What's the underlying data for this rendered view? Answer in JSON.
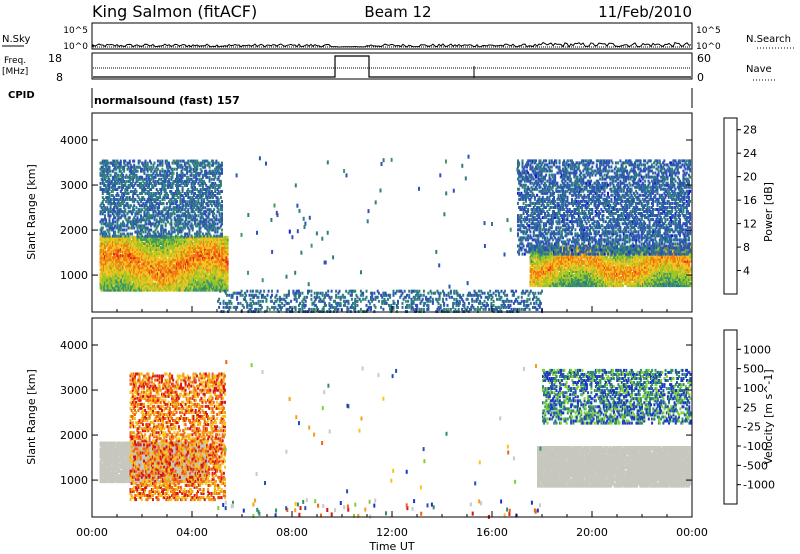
{
  "header": {
    "station": "King Salmon (fitACF)",
    "beam": "Beam 12",
    "date": "11/Feb/2010"
  },
  "summary_panels": {
    "nsky_label": "N.Sky",
    "nsearch_label": "N.Search",
    "count_ticks": [
      "10^5",
      "10^0"
    ],
    "freq_label_line1": "Freq.",
    "freq_label_line2": "[MHz]",
    "freq_ticks": [
      "18",
      "8"
    ],
    "nave_label": "Nave",
    "nave_ticks": [
      "60",
      "0"
    ],
    "cpid_label": "CPID",
    "cpid_text": "normalsound (fast) 157"
  },
  "colors": {
    "power_scale": [
      "#1414e6",
      "#2d53b4",
      "#2f7d83",
      "#3f9b5e",
      "#9cc624",
      "#f3c21f",
      "#f27a12",
      "#e72516",
      "#d80d10"
    ],
    "velocity_scale": [
      "#d81414",
      "#f06414",
      "#f3a014",
      "#f7c41c",
      "#c8c8c8",
      "#c8c8c8",
      "#7fcf3a",
      "#2f8f6a",
      "#2552b0",
      "#1a32c8"
    ],
    "ground_scatter": "#c7c7bd"
  },
  "chart_data": [
    {
      "type": "heatmap",
      "name": "power",
      "title": "",
      "xlabel": "Time UT",
      "ylabel": "Slant Range [km]",
      "x_range_hours": [
        0,
        24
      ],
      "x_ticks": [
        "00:00",
        "04:00",
        "08:00",
        "12:00",
        "16:00",
        "20:00",
        "00:00"
      ],
      "ylim": [
        180,
        4600
      ],
      "y_ticks": [
        1000,
        2000,
        3000,
        4000
      ],
      "colorbar_label": "Power [dB]",
      "colorbar_ticks": [
        4,
        8,
        12,
        16,
        20,
        24,
        28
      ],
      "colorbar_range": [
        0,
        30
      ],
      "regions": [
        {
          "start_hour": 0.3,
          "end_hour": 5.4,
          "range_band": [
            700,
            1900
          ],
          "level": 17
        },
        {
          "start_hour": 0.3,
          "end_hour": 5.2,
          "range_band": [
            1900,
            3600
          ],
          "level": 6
        },
        {
          "start_hour": 17.5,
          "end_hour": 24.0,
          "range_band": [
            800,
            1700
          ],
          "level": 16
        },
        {
          "start_hour": 17.0,
          "end_hour": 24.0,
          "range_band": [
            1500,
            3600
          ],
          "level": 5
        },
        {
          "start_hour": 5.0,
          "end_hour": 18.0,
          "range_band": [
            180,
            700
          ],
          "level": 6
        }
      ]
    },
    {
      "type": "heatmap",
      "name": "velocity",
      "title": "",
      "xlabel": "Time UT",
      "ylabel": "Slant Range [km]",
      "x_range_hours": [
        0,
        24
      ],
      "x_ticks": [
        "00:00",
        "04:00",
        "08:00",
        "12:00",
        "16:00",
        "20:00",
        "00:00"
      ],
      "ylim": [
        180,
        4600
      ],
      "y_ticks": [
        1000,
        2000,
        3000,
        4000
      ],
      "colorbar_label": "Velocity [m s^-1]",
      "colorbar_ticks": [
        "1000",
        "500",
        "100",
        "25",
        "-25",
        "-100",
        "-500",
        "-1000"
      ],
      "regions": [
        {
          "start_hour": 0.3,
          "end_hour": 4.6,
          "range_band": [
            1000,
            1900
          ],
          "kind": "ground"
        },
        {
          "start_hour": 1.5,
          "end_hour": 5.3,
          "range_band": [
            600,
            3400
          ],
          "kind": "negative"
        },
        {
          "start_hour": 17.8,
          "end_hour": 24.0,
          "range_band": [
            900,
            1800
          ],
          "kind": "ground"
        },
        {
          "start_hour": 18.0,
          "end_hour": 24.0,
          "range_band": [
            2300,
            3500
          ],
          "kind": "positive"
        }
      ]
    }
  ]
}
